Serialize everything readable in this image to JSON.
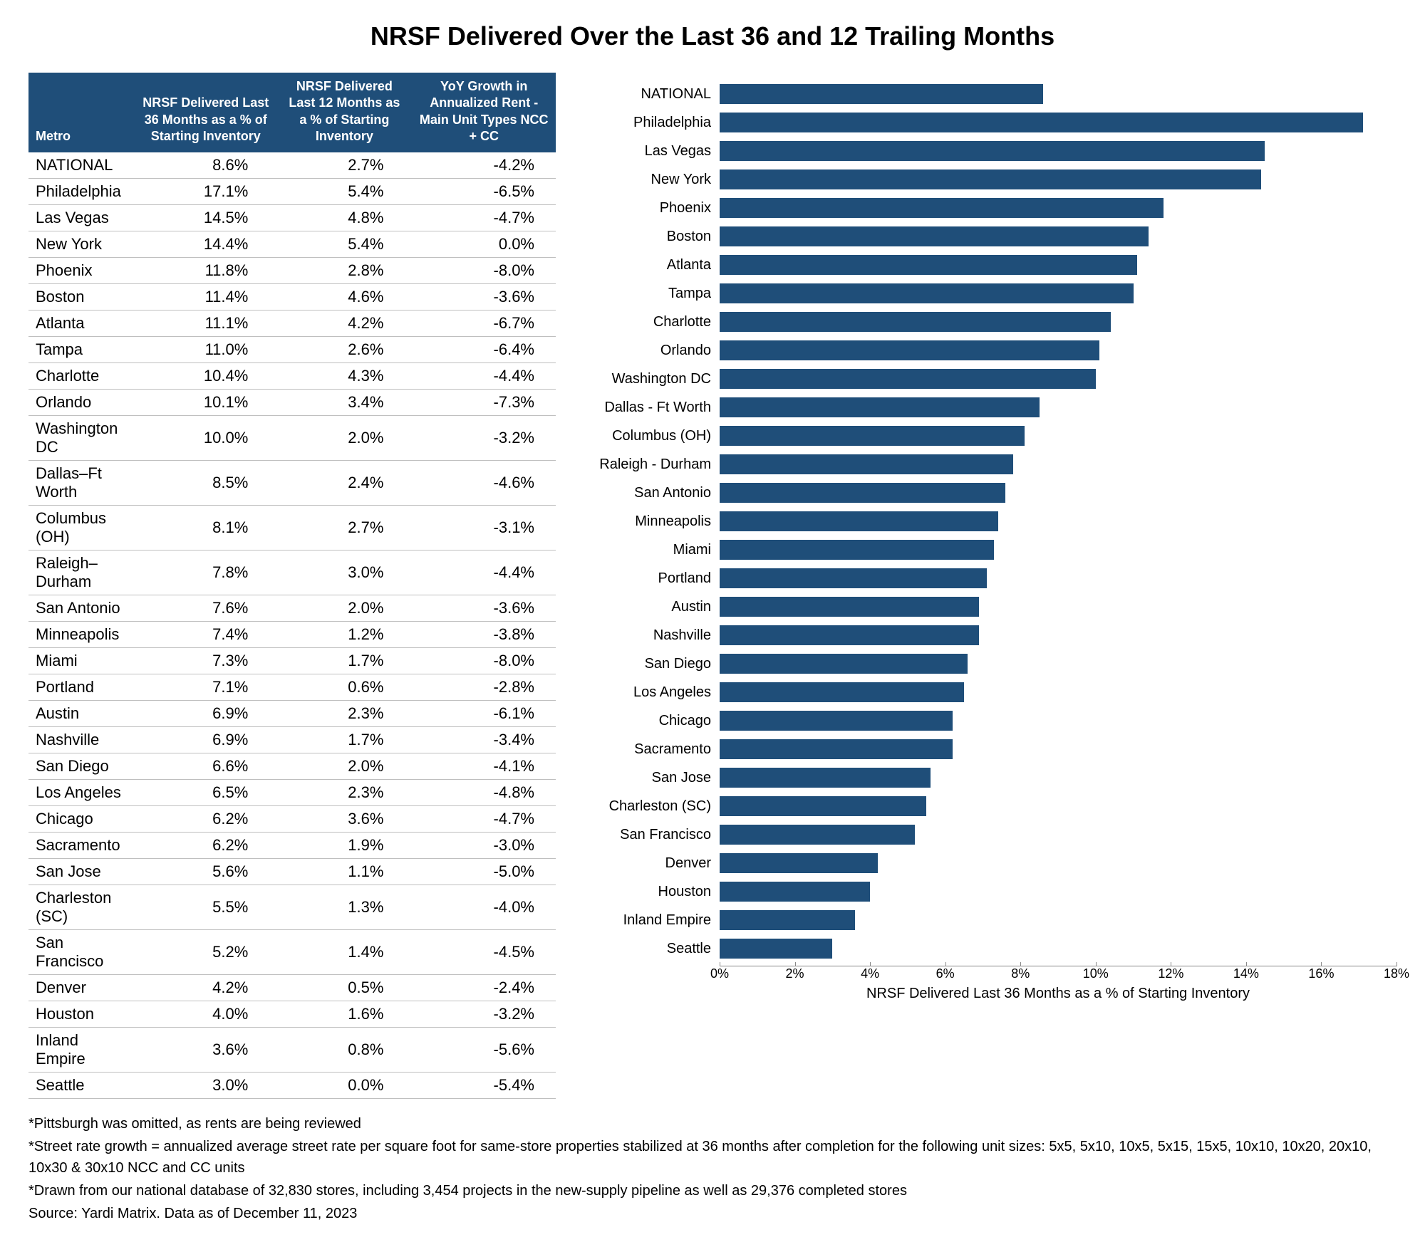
{
  "title": "NRSF Delivered Over the Last 36 and 12 Trailing Months",
  "table": {
    "headers": {
      "metro": "Metro",
      "col1": "NRSF Delivered Last 36 Months as a % of Starting Inventory",
      "col2": "NRSF Delivered Last 12 Months as a % of Starting Inventory",
      "col3": "YoY Growth in Annualized Rent - Main Unit Types NCC + CC"
    },
    "rows": [
      {
        "metro": "NATIONAL",
        "v36": "8.6%",
        "v12": "2.7%",
        "yoy": "-4.2%"
      },
      {
        "metro": "Philadelphia",
        "v36": "17.1%",
        "v12": "5.4%",
        "yoy": "-6.5%"
      },
      {
        "metro": "Las Vegas",
        "v36": "14.5%",
        "v12": "4.8%",
        "yoy": "-4.7%"
      },
      {
        "metro": "New York",
        "v36": "14.4%",
        "v12": "5.4%",
        "yoy": "0.0%"
      },
      {
        "metro": "Phoenix",
        "v36": "11.8%",
        "v12": "2.8%",
        "yoy": "-8.0%"
      },
      {
        "metro": "Boston",
        "v36": "11.4%",
        "v12": "4.6%",
        "yoy": "-3.6%"
      },
      {
        "metro": "Atlanta",
        "v36": "11.1%",
        "v12": "4.2%",
        "yoy": "-6.7%"
      },
      {
        "metro": "Tampa",
        "v36": "11.0%",
        "v12": "2.6%",
        "yoy": "-6.4%"
      },
      {
        "metro": "Charlotte",
        "v36": "10.4%",
        "v12": "4.3%",
        "yoy": "-4.4%"
      },
      {
        "metro": "Orlando",
        "v36": "10.1%",
        "v12": "3.4%",
        "yoy": "-7.3%"
      },
      {
        "metro": "Washington DC",
        "v36": "10.0%",
        "v12": "2.0%",
        "yoy": "-3.2%"
      },
      {
        "metro": "Dallas–Ft Worth",
        "v36": "8.5%",
        "v12": "2.4%",
        "yoy": "-4.6%"
      },
      {
        "metro": "Columbus (OH)",
        "v36": "8.1%",
        "v12": "2.7%",
        "yoy": "-3.1%"
      },
      {
        "metro": "Raleigh–Durham",
        "v36": "7.8%",
        "v12": "3.0%",
        "yoy": "-4.4%"
      },
      {
        "metro": "San Antonio",
        "v36": "7.6%",
        "v12": "2.0%",
        "yoy": "-3.6%"
      },
      {
        "metro": "Minneapolis",
        "v36": "7.4%",
        "v12": "1.2%",
        "yoy": "-3.8%"
      },
      {
        "metro": "Miami",
        "v36": "7.3%",
        "v12": "1.7%",
        "yoy": "-8.0%"
      },
      {
        "metro": "Portland",
        "v36": "7.1%",
        "v12": "0.6%",
        "yoy": "-2.8%"
      },
      {
        "metro": "Austin",
        "v36": "6.9%",
        "v12": "2.3%",
        "yoy": "-6.1%"
      },
      {
        "metro": "Nashville",
        "v36": "6.9%",
        "v12": "1.7%",
        "yoy": "-3.4%"
      },
      {
        "metro": "San Diego",
        "v36": "6.6%",
        "v12": "2.0%",
        "yoy": "-4.1%"
      },
      {
        "metro": "Los Angeles",
        "v36": "6.5%",
        "v12": "2.3%",
        "yoy": "-4.8%"
      },
      {
        "metro": "Chicago",
        "v36": "6.2%",
        "v12": "3.6%",
        "yoy": "-4.7%"
      },
      {
        "metro": "Sacramento",
        "v36": "6.2%",
        "v12": "1.9%",
        "yoy": "-3.0%"
      },
      {
        "metro": "San Jose",
        "v36": "5.6%",
        "v12": "1.1%",
        "yoy": "-5.0%"
      },
      {
        "metro": "Charleston (SC)",
        "v36": "5.5%",
        "v12": "1.3%",
        "yoy": "-4.0%"
      },
      {
        "metro": "San Francisco",
        "v36": "5.2%",
        "v12": "1.4%",
        "yoy": "-4.5%"
      },
      {
        "metro": "Denver",
        "v36": "4.2%",
        "v12": "0.5%",
        "yoy": "-2.4%"
      },
      {
        "metro": "Houston",
        "v36": "4.0%",
        "v12": "1.6%",
        "yoy": "-3.2%"
      },
      {
        "metro": "Inland Empire",
        "v36": "3.6%",
        "v12": "0.8%",
        "yoy": "-5.6%"
      },
      {
        "metro": "Seattle",
        "v36": "3.0%",
        "v12": "0.0%",
        "yoy": "-5.4%"
      }
    ]
  },
  "chart": {
    "type": "bar-horizontal",
    "bar_color": "#1f4e79",
    "background_color": "#ffffff",
    "xlim": [
      0,
      18
    ],
    "xtick_step": 2,
    "xticks": [
      "0%",
      "2%",
      "4%",
      "6%",
      "8%",
      "10%",
      "12%",
      "14%",
      "16%",
      "18%"
    ],
    "xlabel": "NRSF Delivered Last 36 Months as a % of Starting Inventory",
    "label_fontsize": 20,
    "bars": [
      {
        "label": "NATIONAL",
        "value": 8.6
      },
      {
        "label": "Philadelphia",
        "value": 17.1
      },
      {
        "label": "Las Vegas",
        "value": 14.5
      },
      {
        "label": "New York",
        "value": 14.4
      },
      {
        "label": "Phoenix",
        "value": 11.8
      },
      {
        "label": "Boston",
        "value": 11.4
      },
      {
        "label": "Atlanta",
        "value": 11.1
      },
      {
        "label": "Tampa",
        "value": 11.0
      },
      {
        "label": "Charlotte",
        "value": 10.4
      },
      {
        "label": "Orlando",
        "value": 10.1
      },
      {
        "label": "Washington DC",
        "value": 10.0
      },
      {
        "label": "Dallas - Ft Worth",
        "value": 8.5
      },
      {
        "label": "Columbus (OH)",
        "value": 8.1
      },
      {
        "label": "Raleigh - Durham",
        "value": 7.8
      },
      {
        "label": "San Antonio",
        "value": 7.6
      },
      {
        "label": "Minneapolis",
        "value": 7.4
      },
      {
        "label": "Miami",
        "value": 7.3
      },
      {
        "label": "Portland",
        "value": 7.1
      },
      {
        "label": "Austin",
        "value": 6.9
      },
      {
        "label": "Nashville",
        "value": 6.9
      },
      {
        "label": "San Diego",
        "value": 6.6
      },
      {
        "label": "Los Angeles",
        "value": 6.5
      },
      {
        "label": "Chicago",
        "value": 6.2
      },
      {
        "label": "Sacramento",
        "value": 6.2
      },
      {
        "label": "San Jose",
        "value": 5.6
      },
      {
        "label": "Charleston (SC)",
        "value": 5.5
      },
      {
        "label": "San Francisco",
        "value": 5.2
      },
      {
        "label": "Denver",
        "value": 4.2
      },
      {
        "label": "Houston",
        "value": 4.0
      },
      {
        "label": "Inland Empire",
        "value": 3.6
      },
      {
        "label": "Seattle",
        "value": 3.0
      }
    ]
  },
  "footnotes": [
    "*Pittsburgh was omitted, as rents are being reviewed",
    "*Street rate growth = annualized average street rate per square foot for same-store properties stabilized at 36 months after completion for the following unit sizes: 5x5, 5x10, 10x5, 5x15, 15x5, 10x10, 10x20, 20x10, 10x30 & 30x10 NCC and CC units",
    "*Drawn from our national database of 32,830 stores, including 3,454 projects in the new-supply pipeline as well as 29,376 completed stores",
    "Source: Yardi Matrix. Data as of December 11, 2023"
  ]
}
